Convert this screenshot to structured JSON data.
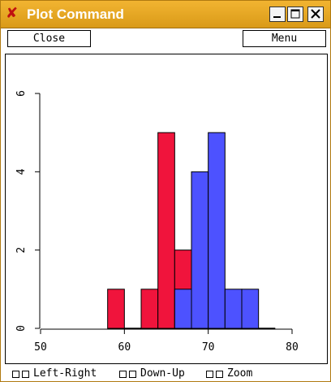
{
  "window": {
    "title": "Plot Command",
    "app_icon": "x-app-icon",
    "controls": [
      "minimize",
      "maximize",
      "close"
    ]
  },
  "toolbar": {
    "close_label": "Close",
    "menu_label": "Menu"
  },
  "chart_data": {
    "type": "bar",
    "title": "",
    "xlabel": "",
    "ylabel": "",
    "xlim": [
      50,
      80
    ],
    "ylim": [
      0,
      6
    ],
    "x_ticks": [
      "50",
      "60",
      "70",
      "80"
    ],
    "y_ticks": [
      "0",
      "2",
      "4",
      "6"
    ],
    "bin_width": 2,
    "series": [
      {
        "color": "#f0143c",
        "bins": [
          {
            "start": 58,
            "count": 1
          },
          {
            "start": 60,
            "count": 0
          },
          {
            "start": 62,
            "count": 1
          },
          {
            "start": 64,
            "count": 5
          },
          {
            "start": 66,
            "count": 2
          }
        ]
      },
      {
        "color": "#4d52ff",
        "bins": [
          {
            "start": 66,
            "count": 1
          },
          {
            "start": 68,
            "count": 4
          },
          {
            "start": 70,
            "count": 5
          },
          {
            "start": 72,
            "count": 1
          },
          {
            "start": 74,
            "count": 1
          },
          {
            "start": 76,
            "count": 0
          }
        ]
      }
    ]
  },
  "bottom_controls": [
    {
      "label": "Left-Right"
    },
    {
      "label": "Down-Up"
    },
    {
      "label": "Zoom"
    }
  ]
}
